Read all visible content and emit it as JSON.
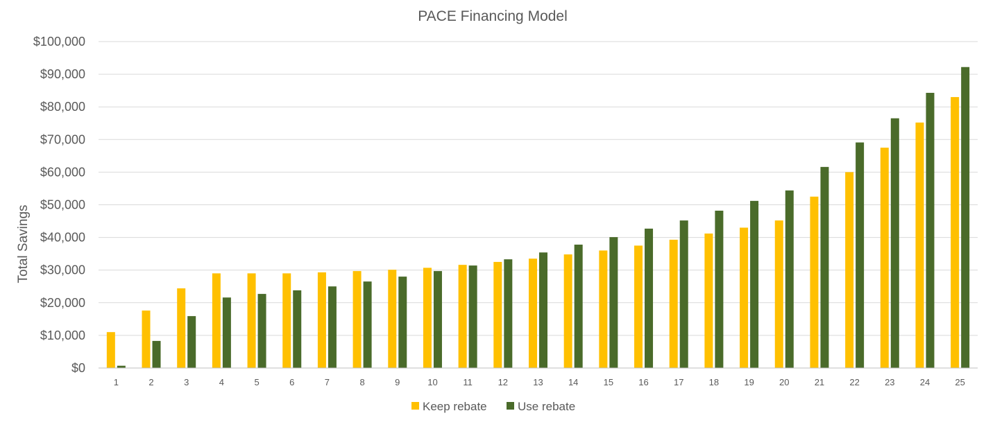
{
  "chart_data": {
    "type": "bar",
    "title": "PACE Financing Model",
    "xlabel": "",
    "ylabel": "Total Savings",
    "ylim": [
      0,
      100000
    ],
    "yticks": [
      0,
      10000,
      20000,
      30000,
      40000,
      50000,
      60000,
      70000,
      80000,
      90000,
      100000
    ],
    "ytick_labels": [
      "$0",
      "$10,000",
      "$20,000",
      "$30,000",
      "$40,000",
      "$50,000",
      "$60,000",
      "$70,000",
      "$80,000",
      "$90,000",
      "$100,000"
    ],
    "categories": [
      "1",
      "2",
      "3",
      "4",
      "5",
      "6",
      "7",
      "8",
      "9",
      "10",
      "11",
      "12",
      "13",
      "14",
      "15",
      "16",
      "17",
      "18",
      "19",
      "20",
      "21",
      "22",
      "23",
      "24",
      "25"
    ],
    "grid": true,
    "legend_position": "bottom",
    "series": [
      {
        "name": "Keep rebate",
        "color": "#FFC000",
        "values": [
          11000,
          17600,
          24400,
          29000,
          29000,
          29000,
          29300,
          29700,
          30100,
          30700,
          31600,
          32500,
          33500,
          34800,
          36000,
          37500,
          39300,
          41200,
          43000,
          45200,
          52500,
          60000,
          67500,
          75200,
          83000
        ]
      },
      {
        "name": "Use rebate",
        "color": "#4A6B2A",
        "values": [
          700,
          8300,
          15900,
          21600,
          22700,
          23800,
          25000,
          26500,
          28000,
          29700,
          31400,
          33300,
          35400,
          37800,
          40100,
          42700,
          45200,
          48200,
          51200,
          54400,
          61600,
          69100,
          76500,
          84300,
          92200
        ]
      }
    ]
  }
}
